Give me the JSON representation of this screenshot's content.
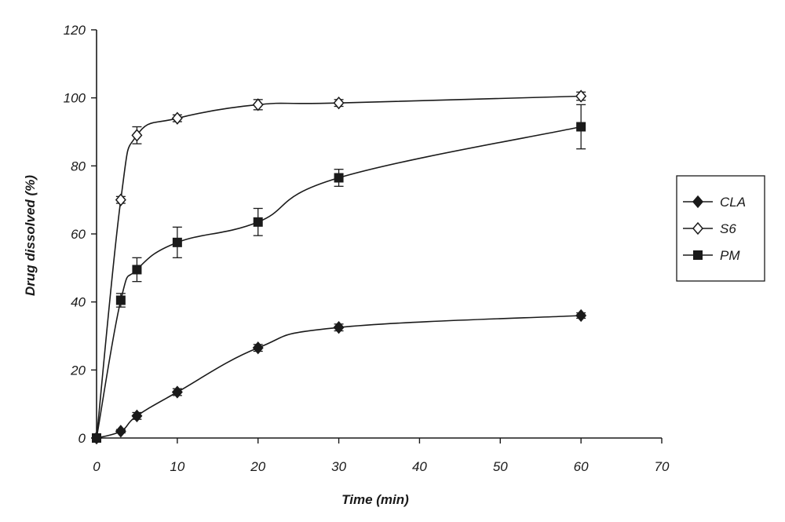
{
  "chart_data": {
    "type": "line",
    "title": "",
    "xlabel": "Time (min)",
    "ylabel": "Drug dissolved (%)",
    "xlim": [
      0,
      70
    ],
    "ylim": [
      0,
      120
    ],
    "xticks": [
      0,
      10,
      20,
      30,
      40,
      50,
      60,
      70
    ],
    "xtick_labels": [
      "0",
      "10",
      "20",
      "30",
      "40",
      "50",
      "60",
      "70"
    ],
    "yticks": [
      0,
      20,
      40,
      60,
      80,
      100,
      120
    ],
    "ytick_labels": [
      "0",
      "20",
      "40",
      "60",
      "80",
      "100",
      "120"
    ],
    "grid": false,
    "legend_position": "right",
    "series": [
      {
        "name": "CLA",
        "marker": "filled-diamond",
        "x": [
          0,
          3,
          5,
          10,
          20,
          30,
          60
        ],
        "y": [
          0,
          2,
          6.5,
          13.5,
          26.5,
          32.5,
          36
        ],
        "error": [
          0,
          0.5,
          1,
          1,
          1,
          1,
          0.8
        ]
      },
      {
        "name": "S6",
        "marker": "open-diamond",
        "x": [
          0,
          3,
          5,
          10,
          20,
          30,
          60
        ],
        "y": [
          0,
          70,
          89,
          94,
          98,
          98.5,
          100.5
        ],
        "error": [
          0,
          1,
          2.5,
          1,
          1.5,
          1,
          1.2
        ]
      },
      {
        "name": "PM",
        "marker": "filled-square",
        "x": [
          0,
          3,
          5,
          10,
          20,
          30,
          60
        ],
        "y": [
          0,
          40.5,
          49.5,
          57.5,
          63.5,
          76.5,
          91.5
        ],
        "error": [
          0,
          2,
          3.5,
          4.5,
          4,
          2.5,
          6.5
        ]
      }
    ]
  }
}
